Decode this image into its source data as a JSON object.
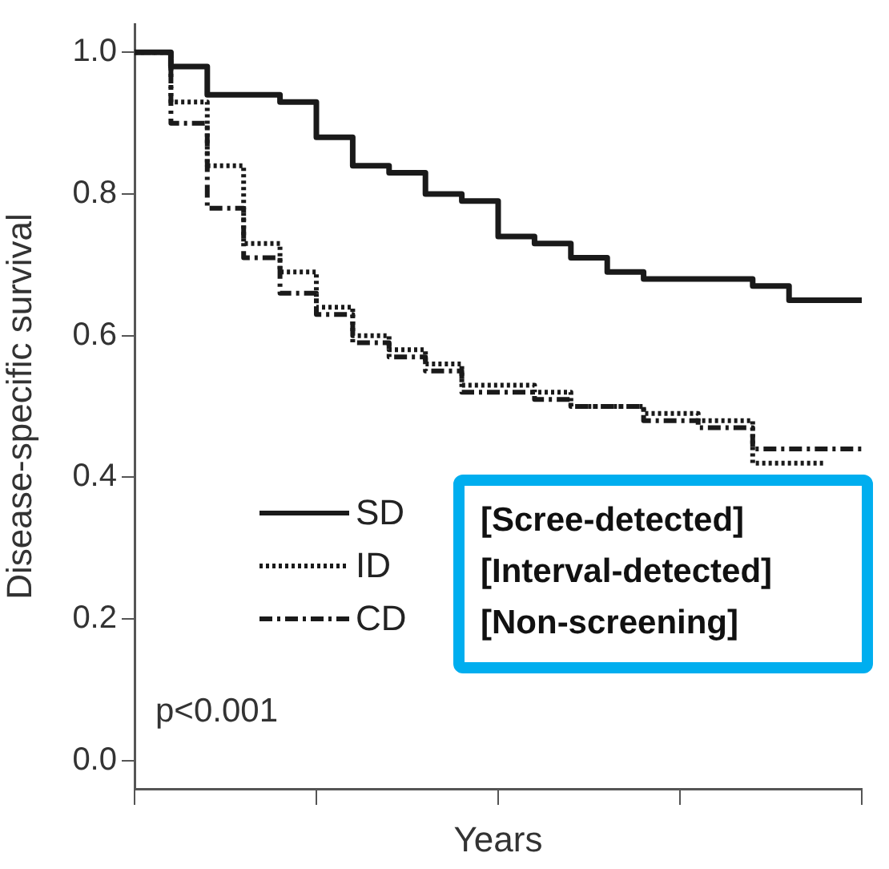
{
  "chart_data": {
    "type": "step",
    "xlabel": "Years",
    "ylabel": "Disease-specific survival",
    "categories": [
      null,
      null,
      null,
      null,
      null,
      null,
      null,
      null,
      null,
      null,
      null,
      null,
      null,
      null,
      null,
      null,
      null,
      null,
      null,
      null,
      null,
      null,
      null,
      null,
      null,
      null,
      null,
      null,
      null,
      null,
      null,
      null,
      null,
      null,
      null,
      null,
      null,
      null,
      null,
      null,
      null,
      null,
      null,
      null,
      null,
      null,
      null,
      null,
      null,
      null,
      null,
      null,
      null,
      null,
      null,
      null,
      null,
      null,
      null,
      null,
      null,
      null,
      null,
      null,
      null,
      null,
      null,
      null,
      null,
      null,
      null,
      null,
      null,
      null,
      null,
      null,
      null,
      null,
      null,
      null,
      null
    ],
    "ylim": [
      -0.04,
      1.04
    ],
    "yticks": [
      {
        "value": 0,
        "label": "0.0"
      },
      0.2,
      0.4,
      0.6,
      0.8,
      {
        "value": 1,
        "label": "1.0"
      }
    ],
    "tick_labels": "y",
    "grid": false,
    "legend": "bottom left",
    "annotations": [
      "p<0.001",
      "[Scree-detected]",
      "[Interval-detected]",
      "[Non-screening]"
    ],
    "series": [
      {
        "name": "SD",
        "color": "#1a1a1a",
        "line_style": "solid",
        "values": [
          1.0,
          1.0,
          1.0,
          1.0,
          0.98,
          0.98,
          0.98,
          0.98,
          0.94,
          0.94,
          0.94,
          0.94,
          0.94,
          0.94,
          0.94,
          0.94,
          0.93,
          0.93,
          0.93,
          0.93,
          0.88,
          0.88,
          0.88,
          0.88,
          0.84,
          0.84,
          0.84,
          0.84,
          0.83,
          0.83,
          0.83,
          0.83,
          0.8,
          0.8,
          0.8,
          0.8,
          0.79,
          0.79,
          0.79,
          0.79,
          0.74,
          0.74,
          0.74,
          0.74,
          0.73,
          0.73,
          0.73,
          0.73,
          0.71,
          0.71,
          0.71,
          0.71,
          0.69,
          0.69,
          0.69,
          0.69,
          0.68,
          0.68,
          0.68,
          0.68,
          0.68,
          0.68,
          0.68,
          0.68,
          0.68,
          0.68,
          0.68,
          0.68,
          0.67,
          0.67,
          0.67,
          0.67,
          0.65,
          0.65,
          0.65,
          0.65,
          0.65,
          0.65,
          0.65,
          0.65,
          0.65
        ]
      },
      {
        "name": "ID",
        "color": "#1a1a1a",
        "line_style": "dotted",
        "values": [
          1.0,
          1.0,
          1.0,
          1.0,
          0.93,
          0.93,
          0.93,
          0.93,
          0.84,
          0.84,
          0.84,
          0.84,
          0.73,
          0.73,
          0.73,
          0.73,
          0.69,
          0.69,
          0.69,
          0.69,
          0.64,
          0.64,
          0.64,
          0.64,
          0.6,
          0.6,
          0.6,
          0.6,
          0.58,
          0.58,
          0.58,
          0.58,
          0.56,
          0.56,
          0.56,
          0.56,
          0.53,
          0.53,
          0.53,
          0.53,
          0.53,
          0.53,
          0.53,
          0.53,
          0.52,
          0.52,
          0.52,
          0.52,
          0.5,
          0.5,
          0.5,
          0.5,
          0.5,
          0.5,
          0.5,
          0.5,
          0.49,
          0.49,
          0.49,
          0.49,
          0.49,
          0.49,
          0.48,
          0.48,
          0.48,
          0.48,
          0.48,
          0.48,
          0.42,
          0.42,
          0.42,
          0.42,
          0.42,
          0.42,
          0.42,
          0.42,
          0.42,
          null,
          null,
          null,
          null
        ]
      },
      {
        "name": "CD",
        "color": "#1a1a1a",
        "line_style": "dashdot",
        "values": [
          1.0,
          1.0,
          1.0,
          1.0,
          0.9,
          0.9,
          0.9,
          0.9,
          0.78,
          0.78,
          0.78,
          0.78,
          0.71,
          0.71,
          0.71,
          0.71,
          0.66,
          0.66,
          0.66,
          0.66,
          0.63,
          0.63,
          0.63,
          0.63,
          0.59,
          0.59,
          0.59,
          0.59,
          0.57,
          0.57,
          0.57,
          0.57,
          0.55,
          0.55,
          0.55,
          0.55,
          0.52,
          0.52,
          0.52,
          0.52,
          0.52,
          0.52,
          0.52,
          0.52,
          0.51,
          0.51,
          0.51,
          0.51,
          0.5,
          0.5,
          0.5,
          0.5,
          0.5,
          0.5,
          0.5,
          0.5,
          0.48,
          0.48,
          0.48,
          0.48,
          0.48,
          0.48,
          0.47,
          0.47,
          0.47,
          0.47,
          0.47,
          0.47,
          0.44,
          0.44,
          0.44,
          0.44,
          0.44,
          0.44,
          0.44,
          0.44,
          0.44,
          0.44,
          0.44,
          0.44,
          0.44
        ]
      }
    ]
  }
}
